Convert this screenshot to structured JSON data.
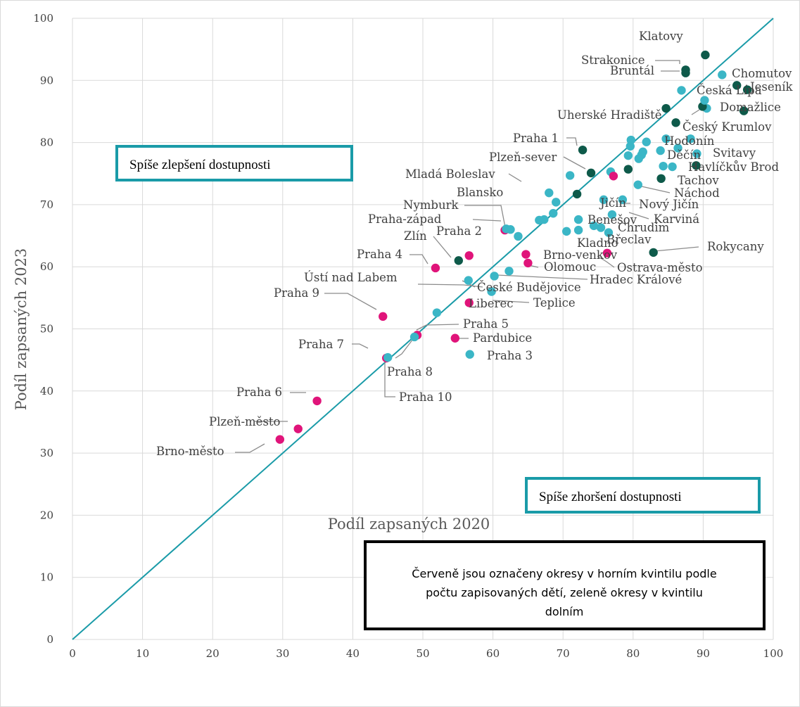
{
  "chart_data": {
    "type": "scatter",
    "xlabel": "Podíl zapsaných 2020",
    "ylabel": "Podíl zapsaných 2023",
    "xlim": [
      0,
      100
    ],
    "ylim": [
      0,
      100
    ],
    "xticks": [
      "0",
      "10",
      "20",
      "30",
      "40",
      "50",
      "60",
      "70",
      "80",
      "90",
      "100"
    ],
    "yticks": [
      "0",
      "10",
      "20",
      "30",
      "40",
      "50",
      "60",
      "70",
      "80",
      "90",
      "100"
    ],
    "grid": true,
    "reference_line": {
      "from": [
        0,
        0
      ],
      "to": [
        100,
        100
      ],
      "color": "#1a9ba8"
    },
    "colors": {
      "red": "#e0147a",
      "green": "#0e5a4a",
      "cyan": "#3bb6c6"
    },
    "annotations": [
      {
        "text": "Spíše zlepšení dostupnosti",
        "box_color": "#1a9ba8"
      },
      {
        "text": "Spíše zhoršení dostupnosti",
        "box_color": "#1a9ba8"
      }
    ],
    "note_lines": [
      "Červeně jsou označeny okresy v horním kvintilu podle",
      "počtu zapisovaných dětí, zeleně okresy v kvintilu",
      "dolním"
    ],
    "points": [
      {
        "label": "Klatovy",
        "x": 90.3,
        "y": 94.1,
        "group": "green"
      },
      {
        "label": "Strakonice",
        "x": 87.5,
        "y": 91.7,
        "group": "green"
      },
      {
        "label": "Bruntál",
        "x": 87.5,
        "y": 91.2,
        "group": "green"
      },
      {
        "label": "Chomutov",
        "x": 94.8,
        "y": 89.2,
        "group": "green"
      },
      {
        "label": "Jeseník",
        "x": 96.3,
        "y": 88.5,
        "group": "green"
      },
      {
        "label": "Česká Lípa",
        "x": 92.7,
        "y": 90.9,
        "group": "cyan"
      },
      {
        "label": "Domažlice",
        "x": 95.8,
        "y": 85.1,
        "group": "green"
      },
      {
        "label": "Uherské Hradiště",
        "x": 84.7,
        "y": 85.5,
        "group": "green"
      },
      {
        "label": "Český Krumlov",
        "x": 90.5,
        "y": 85.5,
        "group": "cyan"
      },
      {
        "label": "Praha 1",
        "x": 72.8,
        "y": 78.8,
        "group": "green"
      },
      {
        "label": "Hodonín",
        "x": 84.7,
        "y": 80.6,
        "group": "cyan"
      },
      {
        "label": "Děčín",
        "x": 86.4,
        "y": 79.1,
        "group": "cyan"
      },
      {
        "label": "Svitavy",
        "x": 89.1,
        "y": 78.2,
        "group": "cyan"
      },
      {
        "label": "Havlíčkův Brod",
        "x": 89.0,
        "y": 76.3,
        "group": "green"
      },
      {
        "label": "Tachov",
        "x": 84.0,
        "y": 74.2,
        "group": "green"
      },
      {
        "label": "Plzeň-sever",
        "x": 74.0,
        "y": 75.1,
        "group": "green"
      },
      {
        "label": "Mladá Boleslav",
        "x": 68.0,
        "y": 71.9,
        "group": "cyan"
      },
      {
        "label": "Náchod",
        "x": 80.7,
        "y": 73.2,
        "group": "cyan"
      },
      {
        "label": "Blansko",
        "x": 62.5,
        "y": 66.0,
        "group": "cyan"
      },
      {
        "label": "Jičín",
        "x": 75.8,
        "y": 70.8,
        "group": "cyan"
      },
      {
        "label": "Nový Jičín",
        "x": 78.5,
        "y": 70.8,
        "group": "cyan"
      },
      {
        "label": "Nymburk",
        "x": 61.7,
        "y": 65.9,
        "group": "red"
      },
      {
        "label": "Karviná",
        "x": 77.0,
        "y": 68.4,
        "group": "cyan"
      },
      {
        "label": "Benešov",
        "x": 72.2,
        "y": 67.6,
        "group": "cyan"
      },
      {
        "label": "Praha-západ",
        "x": 61.9,
        "y": 66.1,
        "group": "cyan"
      },
      {
        "label": "Chrudim",
        "x": 76.5,
        "y": 65.5,
        "group": "cyan"
      },
      {
        "label": "Praha 2",
        "x": 56.6,
        "y": 61.8,
        "group": "red"
      },
      {
        "label": "Zlín",
        "x": 55.1,
        "y": 61.0,
        "group": "green"
      },
      {
        "label": "Břeclav",
        "x": 72.2,
        "y": 65.9,
        "group": "cyan"
      },
      {
        "label": "Kladno",
        "x": 70.5,
        "y": 65.7,
        "group": "cyan"
      },
      {
        "label": "Brno-venkov",
        "x": 64.7,
        "y": 62.0,
        "group": "red"
      },
      {
        "label": "Rokycany",
        "x": 82.9,
        "y": 62.3,
        "group": "green"
      },
      {
        "label": "Praha 4",
        "x": 51.8,
        "y": 59.8,
        "group": "red"
      },
      {
        "label": "Olomouc",
        "x": 65.0,
        "y": 60.6,
        "group": "red"
      },
      {
        "label": "Ostrava-město",
        "x": 76.3,
        "y": 62.2,
        "group": "red"
      },
      {
        "label": "Hradec Králové",
        "x": 62.3,
        "y": 59.3,
        "group": "cyan"
      },
      {
        "label": "Ústí nad Labem",
        "x": 56.5,
        "y": 57.8,
        "group": "cyan"
      },
      {
        "label": "České Budějovice",
        "x": 60.2,
        "y": 58.5,
        "group": "cyan"
      },
      {
        "label": "Teplice",
        "x": 59.8,
        "y": 56.0,
        "group": "cyan"
      },
      {
        "label": "Liberec",
        "x": 56.6,
        "y": 54.2,
        "group": "red"
      },
      {
        "label": "Praha 9",
        "x": 44.3,
        "y": 52.0,
        "group": "red"
      },
      {
        "label": "Praha 5",
        "x": 49.2,
        "y": 49.0,
        "group": "red"
      },
      {
        "label": "Pardubice",
        "x": 54.6,
        "y": 48.5,
        "group": "red"
      },
      {
        "label": "Praha 3",
        "x": 56.7,
        "y": 45.9,
        "group": "cyan"
      },
      {
        "label": "Praha 7",
        "x": 44.8,
        "y": 45.3,
        "group": "red"
      },
      {
        "label": "Praha 8",
        "x": 48.8,
        "y": 48.7,
        "group": "cyan"
      },
      {
        "label": "Praha 10",
        "x": 45.0,
        "y": 45.4,
        "group": "cyan"
      },
      {
        "label": "Praha 6",
        "x": 34.9,
        "y": 38.4,
        "group": "red"
      },
      {
        "label": "Plzeň-město",
        "x": 32.2,
        "y": 33.9,
        "group": "red"
      },
      {
        "label": "Brno-město",
        "x": 29.6,
        "y": 32.2,
        "group": "red"
      },
      {
        "label": "",
        "x": 52.0,
        "y": 52.6,
        "group": "cyan"
      },
      {
        "label": "",
        "x": 63.6,
        "y": 64.9,
        "group": "cyan"
      },
      {
        "label": "",
        "x": 66.6,
        "y": 67.5,
        "group": "cyan"
      },
      {
        "label": "",
        "x": 67.3,
        "y": 67.6,
        "group": "cyan"
      },
      {
        "label": "",
        "x": 69.0,
        "y": 70.4,
        "group": "cyan"
      },
      {
        "label": "",
        "x": 68.6,
        "y": 68.6,
        "group": "cyan"
      },
      {
        "label": "",
        "x": 71.0,
        "y": 74.7,
        "group": "cyan"
      },
      {
        "label": "",
        "x": 72.0,
        "y": 71.7,
        "group": "green"
      },
      {
        "label": "",
        "x": 74.4,
        "y": 66.6,
        "group": "cyan"
      },
      {
        "label": "",
        "x": 75.4,
        "y": 66.3,
        "group": "cyan"
      },
      {
        "label": "",
        "x": 76.8,
        "y": 75.3,
        "group": "cyan"
      },
      {
        "label": "",
        "x": 77.2,
        "y": 74.6,
        "group": "red"
      },
      {
        "label": "",
        "x": 79.3,
        "y": 75.7,
        "group": "green"
      },
      {
        "label": "",
        "x": 79.3,
        "y": 77.9,
        "group": "cyan"
      },
      {
        "label": "",
        "x": 79.6,
        "y": 79.4,
        "group": "cyan"
      },
      {
        "label": "",
        "x": 79.7,
        "y": 80.4,
        "group": "cyan"
      },
      {
        "label": "",
        "x": 80.8,
        "y": 77.4,
        "group": "cyan"
      },
      {
        "label": "",
        "x": 81.2,
        "y": 78.0,
        "group": "cyan"
      },
      {
        "label": "",
        "x": 81.4,
        "y": 78.5,
        "group": "cyan"
      },
      {
        "label": "",
        "x": 81.9,
        "y": 80.1,
        "group": "cyan"
      },
      {
        "label": "",
        "x": 83.9,
        "y": 78.7,
        "group": "cyan"
      },
      {
        "label": "",
        "x": 84.3,
        "y": 76.2,
        "group": "cyan"
      },
      {
        "label": "",
        "x": 85.6,
        "y": 76.1,
        "group": "cyan"
      },
      {
        "label": "",
        "x": 86.1,
        "y": 83.2,
        "group": "green"
      },
      {
        "label": "",
        "x": 86.9,
        "y": 88.4,
        "group": "cyan"
      },
      {
        "label": "",
        "x": 88.2,
        "y": 80.6,
        "group": "cyan"
      },
      {
        "label": "",
        "x": 89.9,
        "y": 85.8,
        "group": "green"
      },
      {
        "label": "",
        "x": 90.2,
        "y": 86.8,
        "group": "cyan"
      }
    ]
  }
}
